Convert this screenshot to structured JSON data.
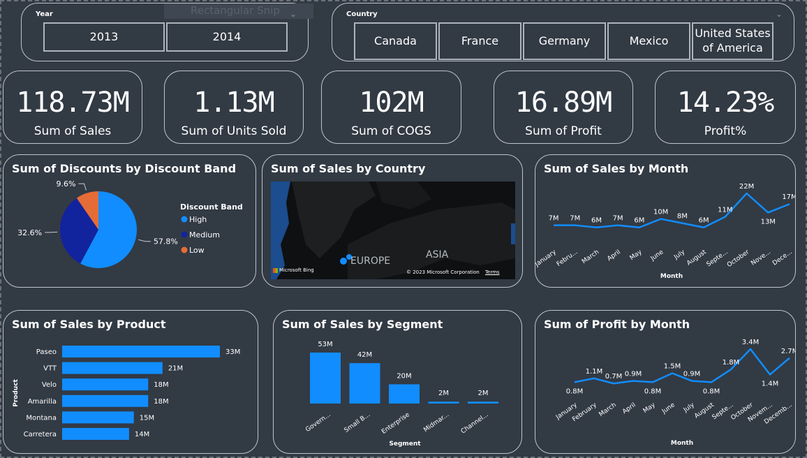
{
  "slicers": {
    "ghost_text": "Rectangular Snip",
    "year": {
      "title": "Year",
      "options": [
        "2013",
        "2014"
      ]
    },
    "country": {
      "title": "Country",
      "options": [
        "Canada",
        "France",
        "Germany",
        "Mexico",
        "United States of America"
      ]
    }
  },
  "kpis": [
    {
      "value": "118.73M",
      "label": "Sum of Sales"
    },
    {
      "value": "1.13M",
      "label": "Sum of Units Sold"
    },
    {
      "value": "102M",
      "label": "Sum of COGS"
    },
    {
      "value": "16.89M",
      "label": "Sum of Profit"
    },
    {
      "value": "14.23%",
      "label": "Profit%"
    }
  ],
  "colors": {
    "accent": "#118dff",
    "medium": "#12239e",
    "low": "#e66c37",
    "background": "#323a44"
  },
  "map": {
    "title": "Sum of Sales by Country",
    "labels": {
      "europe": "EUROPE",
      "asia": "ASIA",
      "bing": "Microsoft Bing",
      "copyright": "© 2023 Microsoft Corporation",
      "terms": "Terms"
    }
  },
  "chart_data": [
    {
      "type": "pie",
      "title": "Sum of Discounts by Discount Band",
      "legend_title": "Discount Band",
      "legend": "right",
      "categories": [
        "High",
        "Medium",
        "Low"
      ],
      "values": [
        57.8,
        32.6,
        9.6
      ],
      "labels": [
        "57.8%",
        "32.6%",
        "9.6%"
      ]
    },
    {
      "type": "line",
      "title": "Sum of Sales by Month",
      "xlabel": "Month",
      "categories": [
        "January",
        "Febru...",
        "March",
        "April",
        "May",
        "June",
        "July",
        "August",
        "Septe...",
        "October",
        "Nove...",
        "Dece..."
      ],
      "values": [
        7,
        7,
        6,
        7,
        6,
        10,
        8,
        6,
        11,
        22,
        13,
        17
      ],
      "labels": [
        "7M",
        "7M",
        "6M",
        "7M",
        "6M",
        "10M",
        "8M",
        "6M",
        "11M",
        "22M",
        "13M",
        "17M"
      ]
    },
    {
      "type": "bar",
      "orientation": "horizontal",
      "title": "Sum of Sales by Product",
      "ylabel": "Product",
      "categories": [
        "Paseo",
        "VTT",
        "Velo",
        "Amarilla",
        "Montana",
        "Carretera"
      ],
      "values": [
        33,
        21,
        18,
        18,
        15,
        14
      ],
      "labels": [
        "33M",
        "21M",
        "18M",
        "18M",
        "15M",
        "14M"
      ]
    },
    {
      "type": "bar",
      "title": "Sum of Sales by Segment",
      "xlabel": "Segment",
      "categories": [
        "Govern...",
        "Small B...",
        "Enterprise",
        "Midmar...",
        "Channel..."
      ],
      "values": [
        53,
        42,
        20,
        2,
        2
      ],
      "labels": [
        "53M",
        "42M",
        "20M",
        "2M",
        "2M"
      ]
    },
    {
      "type": "line",
      "title": "Sum of Profit by Month",
      "xlabel": "Month",
      "categories": [
        "January",
        "February",
        "March",
        "April",
        "May",
        "June",
        "July",
        "August",
        "Septe...",
        "October",
        "Novem...",
        "Decemb..."
      ],
      "values": [
        0.8,
        1.1,
        0.7,
        0.9,
        0.8,
        1.5,
        0.9,
        0.8,
        1.8,
        3.4,
        1.4,
        2.7
      ],
      "labels": [
        "0.8M",
        "1.1M",
        "0.7M",
        "0.9M",
        "0.8M",
        "1.5M",
        "0.9M",
        "0.8M",
        "1.8M",
        "3.4M",
        "1.4M",
        "2.7M"
      ]
    }
  ]
}
